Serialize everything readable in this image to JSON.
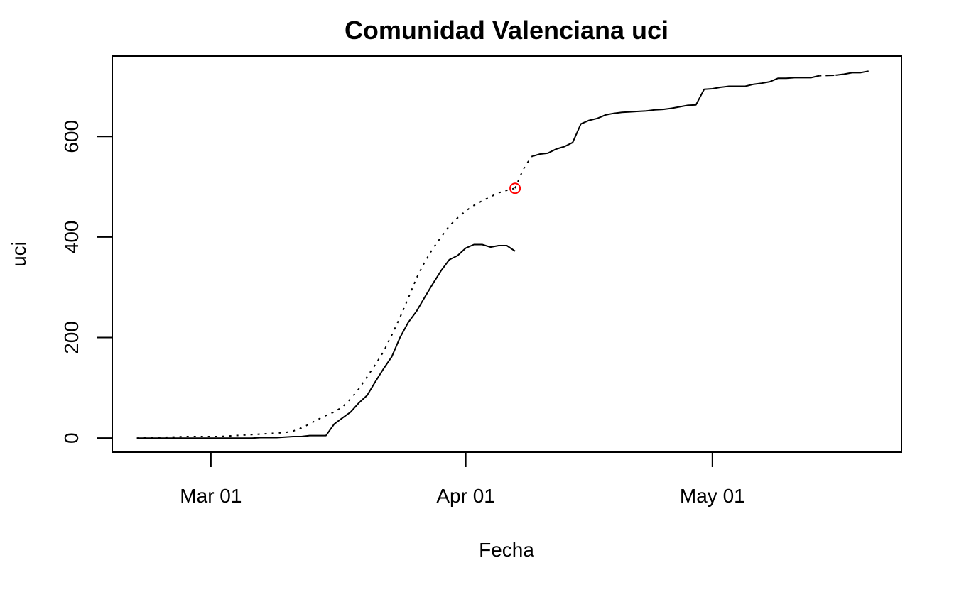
{
  "chart_data": {
    "type": "line",
    "title": "Comunidad Valenciana uci",
    "xlabel": "Fecha",
    "ylabel": "uci",
    "x_ticks": [
      "Mar 01",
      "Apr 01",
      "May 01"
    ],
    "y_ticks": [
      0,
      200,
      400,
      600
    ],
    "xlim": [
      "2020-02-18",
      "2020-05-24"
    ],
    "ylim": [
      -28,
      760
    ],
    "grid": false,
    "legend": "none",
    "colors": {
      "line": "#000000",
      "marker": "#ff0000"
    },
    "series": [
      {
        "style": "dotted",
        "points": [
          [
            "2020-02-21",
            0
          ],
          [
            "2020-02-23",
            1
          ],
          [
            "2020-02-25",
            2
          ],
          [
            "2020-02-27",
            3
          ],
          [
            "2020-02-29",
            3
          ],
          [
            "2020-03-01",
            3
          ],
          [
            "2020-03-02",
            3
          ],
          [
            "2020-03-03",
            4
          ],
          [
            "2020-03-04",
            5
          ],
          [
            "2020-03-05",
            6
          ],
          [
            "2020-03-06",
            7
          ],
          [
            "2020-03-07",
            8
          ],
          [
            "2020-03-08",
            9
          ],
          [
            "2020-03-09",
            10
          ],
          [
            "2020-03-10",
            11
          ],
          [
            "2020-03-11",
            14
          ],
          [
            "2020-03-12",
            20
          ],
          [
            "2020-03-13",
            28
          ],
          [
            "2020-03-14",
            37
          ],
          [
            "2020-03-15",
            45
          ],
          [
            "2020-03-16",
            52
          ],
          [
            "2020-03-17",
            62
          ],
          [
            "2020-03-18",
            78
          ],
          [
            "2020-03-19",
            98
          ],
          [
            "2020-03-20",
            122
          ],
          [
            "2020-03-21",
            146
          ],
          [
            "2020-03-22",
            172
          ],
          [
            "2020-03-23",
            205
          ],
          [
            "2020-03-24",
            240
          ],
          [
            "2020-03-25",
            278
          ],
          [
            "2020-03-26",
            318
          ],
          [
            "2020-03-27",
            350
          ],
          [
            "2020-03-28",
            377
          ],
          [
            "2020-03-29",
            400
          ],
          [
            "2020-03-30",
            422
          ],
          [
            "2020-03-31",
            438
          ],
          [
            "2020-04-01",
            452
          ],
          [
            "2020-04-02",
            463
          ],
          [
            "2020-04-03",
            472
          ],
          [
            "2020-04-04",
            480
          ],
          [
            "2020-04-05",
            488
          ],
          [
            "2020-04-06",
            493
          ],
          [
            "2020-04-07",
            497
          ]
        ]
      },
      {
        "style": "solid",
        "points": [
          [
            "2020-02-21",
            0
          ],
          [
            "2020-03-06",
            0
          ],
          [
            "2020-03-07",
            1
          ],
          [
            "2020-03-09",
            1
          ],
          [
            "2020-03-10",
            2
          ],
          [
            "2020-03-11",
            3
          ],
          [
            "2020-03-12",
            3
          ],
          [
            "2020-03-13",
            5
          ],
          [
            "2020-03-14",
            5
          ],
          [
            "2020-03-15",
            5
          ],
          [
            "2020-03-16",
            28
          ],
          [
            "2020-03-17",
            40
          ],
          [
            "2020-03-18",
            52
          ],
          [
            "2020-03-19",
            70
          ],
          [
            "2020-03-20",
            85
          ],
          [
            "2020-03-21",
            112
          ],
          [
            "2020-03-22",
            138
          ],
          [
            "2020-03-23",
            162
          ],
          [
            "2020-03-24",
            200
          ],
          [
            "2020-03-25",
            230
          ],
          [
            "2020-03-26",
            252
          ],
          [
            "2020-03-27",
            280
          ],
          [
            "2020-03-28",
            307
          ],
          [
            "2020-03-29",
            333
          ],
          [
            "2020-03-30",
            355
          ],
          [
            "2020-03-31",
            363
          ],
          [
            "2020-04-01",
            378
          ],
          [
            "2020-04-02",
            385
          ],
          [
            "2020-04-03",
            385
          ],
          [
            "2020-04-04",
            380
          ],
          [
            "2020-04-05",
            383
          ],
          [
            "2020-04-06",
            383
          ],
          [
            "2020-04-07",
            372
          ]
        ]
      },
      {
        "style": "dotted",
        "points": [
          [
            "2020-04-07",
            497
          ],
          [
            "2020-04-08",
            535
          ],
          [
            "2020-04-09",
            560
          ]
        ]
      },
      {
        "style": "solid",
        "points": [
          [
            "2020-04-09",
            560
          ],
          [
            "2020-04-10",
            565
          ],
          [
            "2020-04-11",
            567
          ],
          [
            "2020-04-12",
            575
          ],
          [
            "2020-04-13",
            580
          ],
          [
            "2020-04-14",
            588
          ],
          [
            "2020-04-15",
            625
          ],
          [
            "2020-04-16",
            632
          ],
          [
            "2020-04-17",
            636
          ],
          [
            "2020-04-18",
            643
          ],
          [
            "2020-04-19",
            646
          ],
          [
            "2020-04-20",
            648
          ],
          [
            "2020-04-21",
            649
          ],
          [
            "2020-04-22",
            650
          ],
          [
            "2020-04-23",
            651
          ],
          [
            "2020-04-24",
            653
          ],
          [
            "2020-04-25",
            654
          ],
          [
            "2020-04-26",
            656
          ],
          [
            "2020-04-27",
            659
          ],
          [
            "2020-04-28",
            662
          ],
          [
            "2020-04-29",
            663
          ],
          [
            "2020-04-30",
            694
          ],
          [
            "2020-05-01",
            695
          ],
          [
            "2020-05-02",
            698
          ],
          [
            "2020-05-03",
            700
          ],
          [
            "2020-05-04",
            700
          ],
          [
            "2020-05-05",
            700
          ],
          [
            "2020-05-06",
            704
          ],
          [
            "2020-05-07",
            706
          ],
          [
            "2020-05-08",
            709
          ],
          [
            "2020-05-09",
            716
          ],
          [
            "2020-05-10",
            716
          ],
          [
            "2020-05-11",
            717
          ],
          [
            "2020-05-12",
            717
          ],
          [
            "2020-05-13",
            717
          ],
          [
            "2020-05-14",
            721
          ]
        ]
      },
      {
        "style": "dashdot",
        "points": [
          [
            "2020-05-14",
            721
          ],
          [
            "2020-05-16",
            722
          ]
        ]
      },
      {
        "style": "solid",
        "points": [
          [
            "2020-05-16",
            722
          ],
          [
            "2020-05-17",
            724
          ],
          [
            "2020-05-18",
            727
          ],
          [
            "2020-05-19",
            727
          ],
          [
            "2020-05-20",
            730
          ]
        ]
      }
    ],
    "markers": [
      {
        "shape": "open-circle",
        "date": "2020-04-07",
        "value": 497
      }
    ]
  }
}
